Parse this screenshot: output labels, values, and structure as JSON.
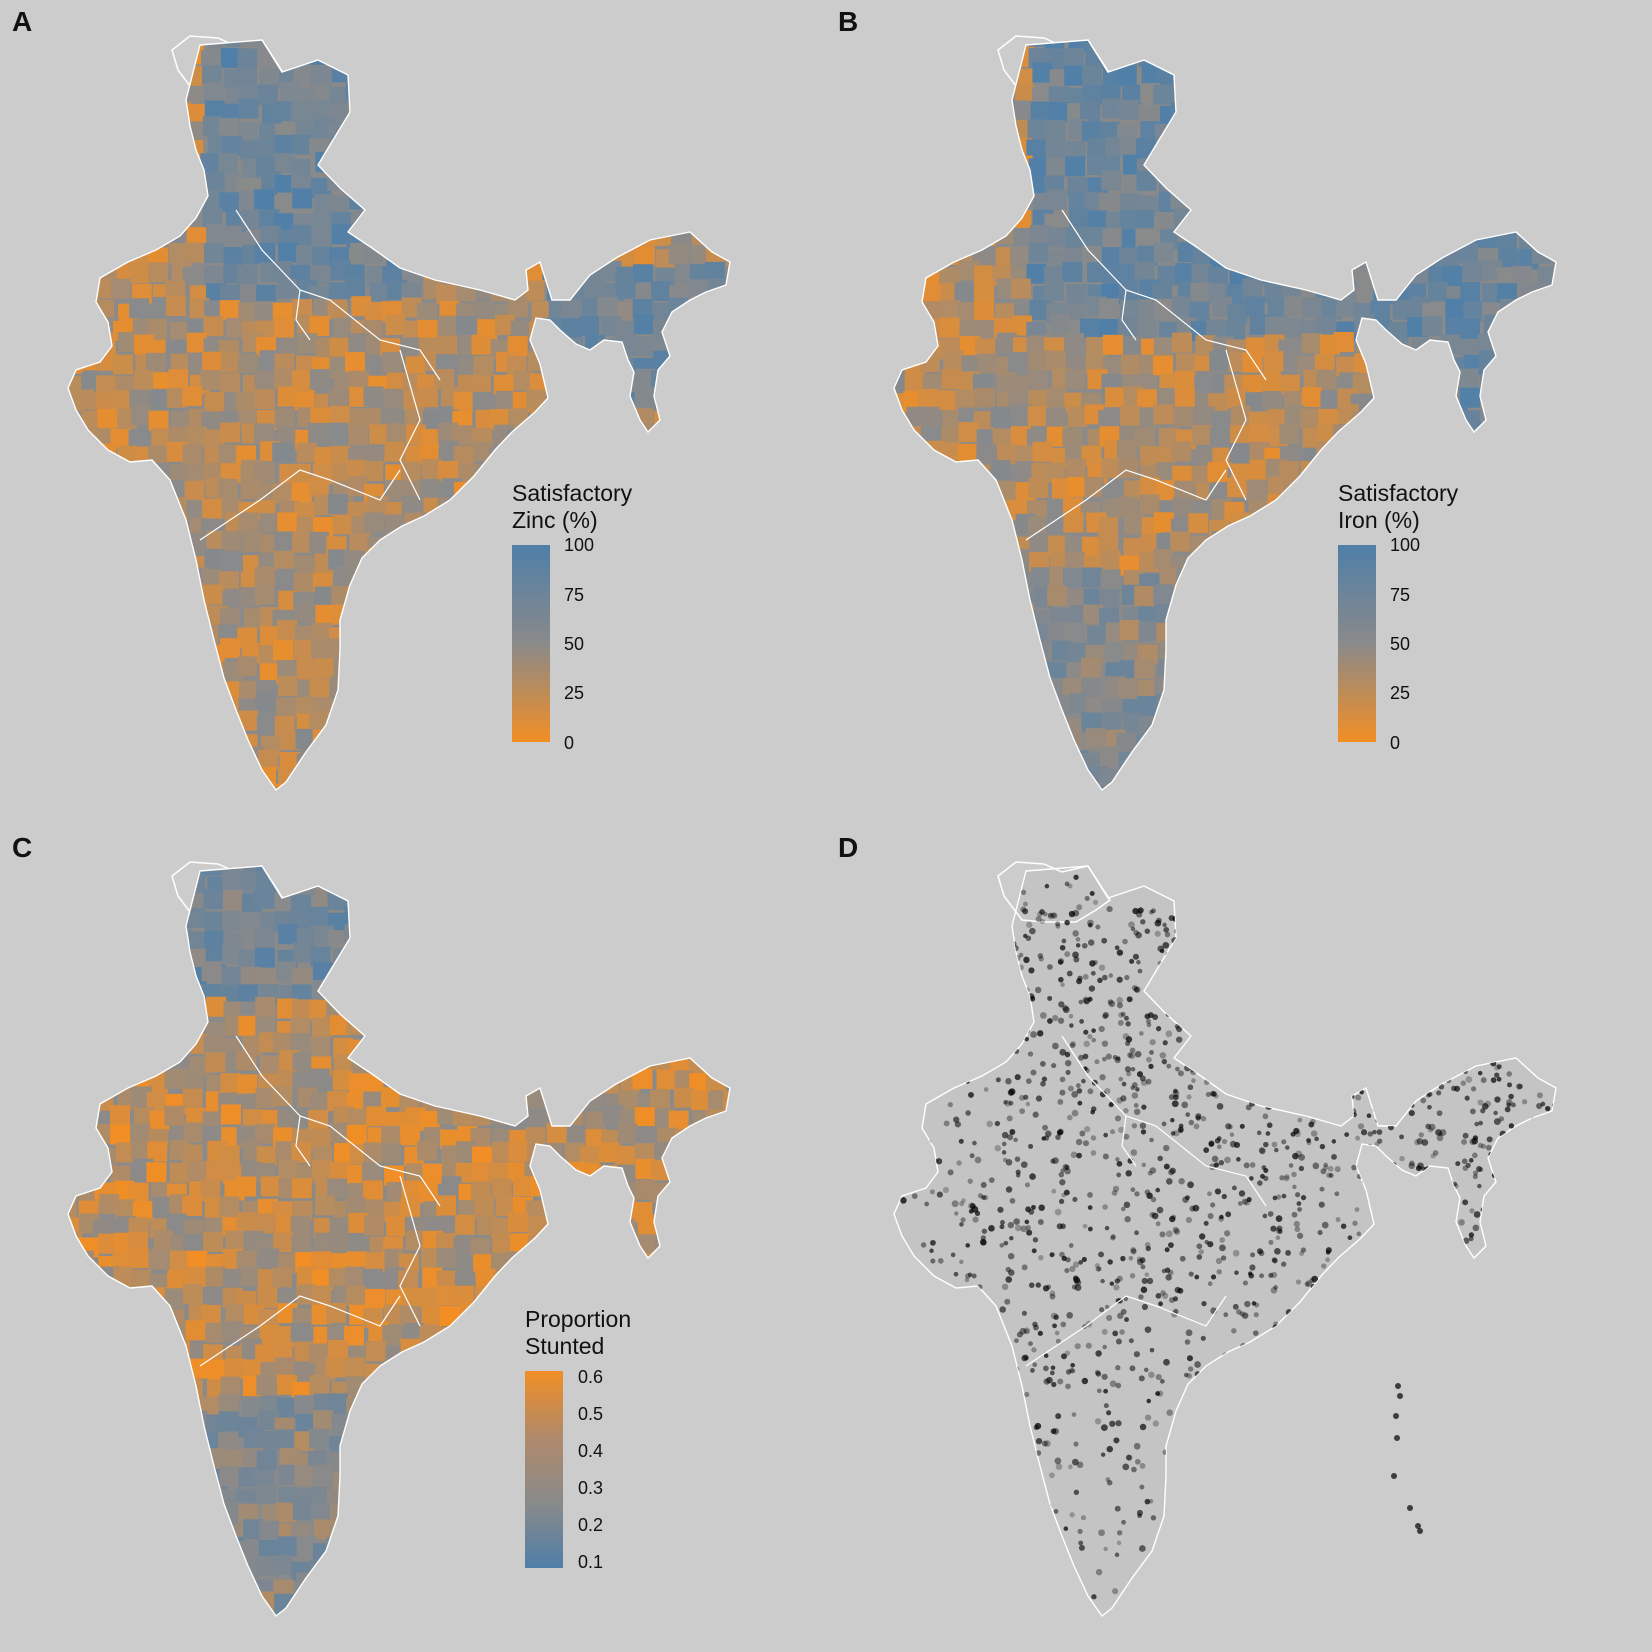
{
  "panels": [
    {
      "letter": "A",
      "kind": "choropleth",
      "legend": {
        "title_line1": "Satisfactory",
        "title_line2": "Zinc (%)",
        "ticks": [
          "100",
          "75",
          "50",
          "25",
          "0"
        ],
        "low_color": "#f28e24",
        "high_color": "#4f7fa8"
      }
    },
    {
      "letter": "B",
      "kind": "choropleth",
      "legend": {
        "title_line1": "Satisfactory",
        "title_line2": "Iron (%)",
        "ticks": [
          "100",
          "75",
          "50",
          "25",
          "0"
        ],
        "low_color": "#f28e24",
        "high_color": "#4f7fa8"
      }
    },
    {
      "letter": "C",
      "kind": "choropleth",
      "legend": {
        "title_line1": "Proportion",
        "title_line2": "Stunted",
        "ticks": [
          "0.6",
          "0.5",
          "0.4",
          "0.3",
          "0.2",
          "0.1"
        ],
        "low_color": "#4f7fa8",
        "high_color": "#f28e24"
      }
    },
    {
      "letter": "D",
      "kind": "points"
    }
  ],
  "colors": {
    "background": "#cccccc",
    "border": "#ffffff",
    "orange": "#f28e24",
    "blue": "#4f7fa8",
    "mid": "#8a8a8a",
    "points": "#000000"
  }
}
